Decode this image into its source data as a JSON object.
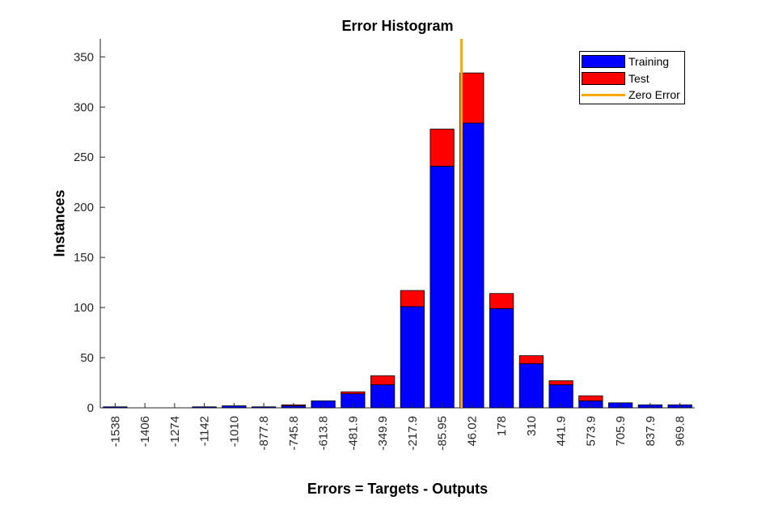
{
  "chart_data": {
    "type": "bar",
    "title": "Error Histogram",
    "xlabel": "Errors = Targets - Outputs",
    "ylabel": "Instances",
    "categories": [
      "-1538",
      "-1406",
      "-1274",
      "-1142",
      "-1010",
      "-877.8",
      "-745.8",
      "-613.8",
      "-481.9",
      "-349.9",
      "-217.9",
      "-85.95",
      "46.02",
      "178",
      "310",
      "441.9",
      "573.9",
      "705.9",
      "837.9",
      "969.8"
    ],
    "series": [
      {
        "name": "Training",
        "color": "#0000ff",
        "values": [
          1,
          0,
          0,
          1,
          2,
          1,
          2,
          7,
          14,
          23,
          101,
          241,
          284,
          99,
          44,
          23,
          7,
          5,
          3,
          3
        ]
      },
      {
        "name": "Test",
        "color": "#ff0000",
        "values": [
          0,
          0,
          0,
          0,
          0,
          0,
          1,
          0,
          2,
          9,
          16,
          37,
          50,
          15,
          8,
          4,
          5,
          0,
          0,
          0
        ]
      }
    ],
    "stacked": true,
    "reference_line": {
      "name": "Zero Error",
      "color": "#ffa500",
      "x_value": 0
    },
    "yticks": [
      0,
      50,
      100,
      150,
      200,
      250,
      300,
      350
    ],
    "ylim": [
      0,
      368
    ],
    "legend_position": "top-right",
    "grid": false
  }
}
